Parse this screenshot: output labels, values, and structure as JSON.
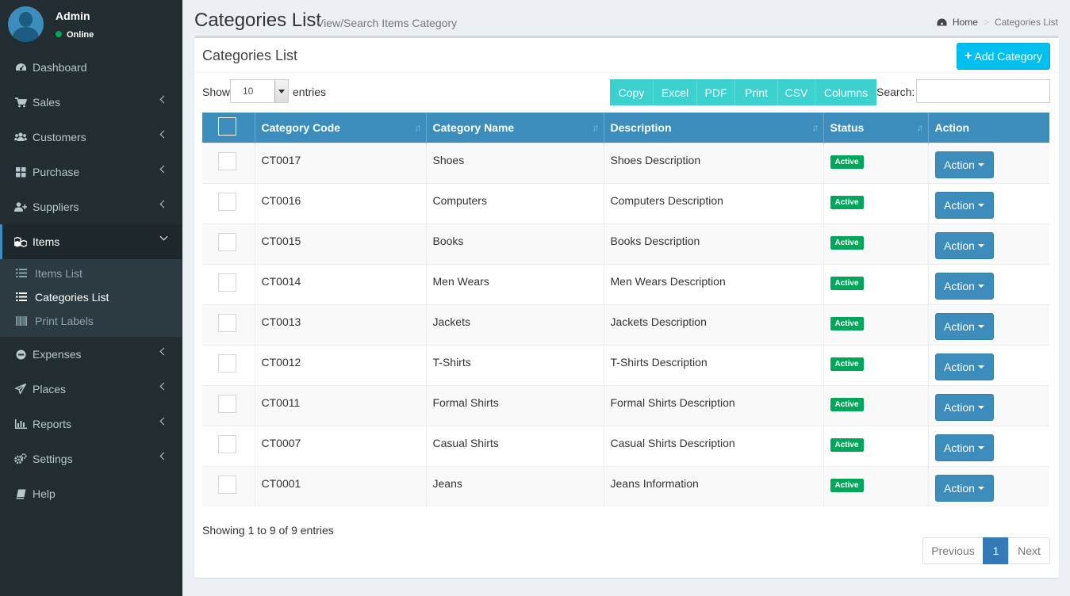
{
  "user": {
    "name": "Admin",
    "status": "Online"
  },
  "sidebar": {
    "items": [
      {
        "label": "Dashboard",
        "icon": "dashboard-icon",
        "has_children": false
      },
      {
        "label": "Sales",
        "icon": "cart-icon",
        "has_children": true
      },
      {
        "label": "Customers",
        "icon": "users-icon",
        "has_children": true
      },
      {
        "label": "Purchase",
        "icon": "grid-icon",
        "has_children": true
      },
      {
        "label": "Suppliers",
        "icon": "user-plus-icon",
        "has_children": true
      },
      {
        "label": "Items",
        "icon": "cubes-icon",
        "has_children": true,
        "expanded": true
      },
      {
        "label": "Expenses",
        "icon": "minus-circle-icon",
        "has_children": true
      },
      {
        "label": "Places",
        "icon": "paper-plane-icon",
        "has_children": true
      },
      {
        "label": "Reports",
        "icon": "bar-chart-icon",
        "has_children": true
      },
      {
        "label": "Settings",
        "icon": "cogs-icon",
        "has_children": true
      },
      {
        "label": "Help",
        "icon": "book-icon",
        "has_children": false
      }
    ],
    "items_submenu": [
      {
        "label": "Items List",
        "icon": "list-icon"
      },
      {
        "label": "Categories List",
        "icon": "list-icon",
        "current": true
      },
      {
        "label": "Print Labels",
        "icon": "barcode-icon"
      }
    ]
  },
  "header": {
    "title": "Categories List",
    "subtitle": "View/Search Items Category",
    "breadcrumb": {
      "home": "Home",
      "current": "Categories List"
    }
  },
  "box": {
    "title": "Categories List",
    "add_button": "Add Category"
  },
  "table_controls": {
    "show_label": "Show",
    "length_value": "10",
    "entries_label": "entries",
    "buttons": [
      "Copy",
      "Excel",
      "PDF",
      "Print",
      "CSV",
      "Columns"
    ],
    "search_label": "Search:",
    "search_value": ""
  },
  "table": {
    "columns": [
      "",
      "Category Code",
      "Category Name",
      "Description",
      "Status",
      "Action"
    ],
    "rows": [
      {
        "code": "CT0017",
        "name": "Shoes",
        "description": "Shoes Description",
        "status": "Active",
        "action": "Action"
      },
      {
        "code": "CT0016",
        "name": "Computers",
        "description": "Computers Description",
        "status": "Active",
        "action": "Action"
      },
      {
        "code": "CT0015",
        "name": "Books",
        "description": "Books Description",
        "status": "Active",
        "action": "Action"
      },
      {
        "code": "CT0014",
        "name": "Men Wears",
        "description": "Men Wears Description",
        "status": "Active",
        "action": "Action"
      },
      {
        "code": "CT0013",
        "name": "Jackets",
        "description": "Jackets Description",
        "status": "Active",
        "action": "Action"
      },
      {
        "code": "CT0012",
        "name": "T-Shirts",
        "description": "T-Shirts Description",
        "status": "Active",
        "action": "Action"
      },
      {
        "code": "CT0011",
        "name": "Formal Shirts",
        "description": "Formal Shirts Description",
        "status": "Active",
        "action": "Action"
      },
      {
        "code": "CT0007",
        "name": "Casual Shirts",
        "description": "Casual Shirts Description",
        "status": "Active",
        "action": "Action"
      },
      {
        "code": "CT0001",
        "name": "Jeans",
        "description": "Jeans Information",
        "status": "Active",
        "action": "Action"
      }
    ]
  },
  "footer": {
    "info": "Showing 1 to 9 of 9 entries",
    "pagination": {
      "previous": "Previous",
      "current_page": "1",
      "next": "Next"
    }
  },
  "colors": {
    "sidebar_bg": "#222d32",
    "primary": "#3c8dbc",
    "info": "#00c0ef",
    "success": "#00a65a",
    "export_buttons": "#3cd0cf"
  }
}
